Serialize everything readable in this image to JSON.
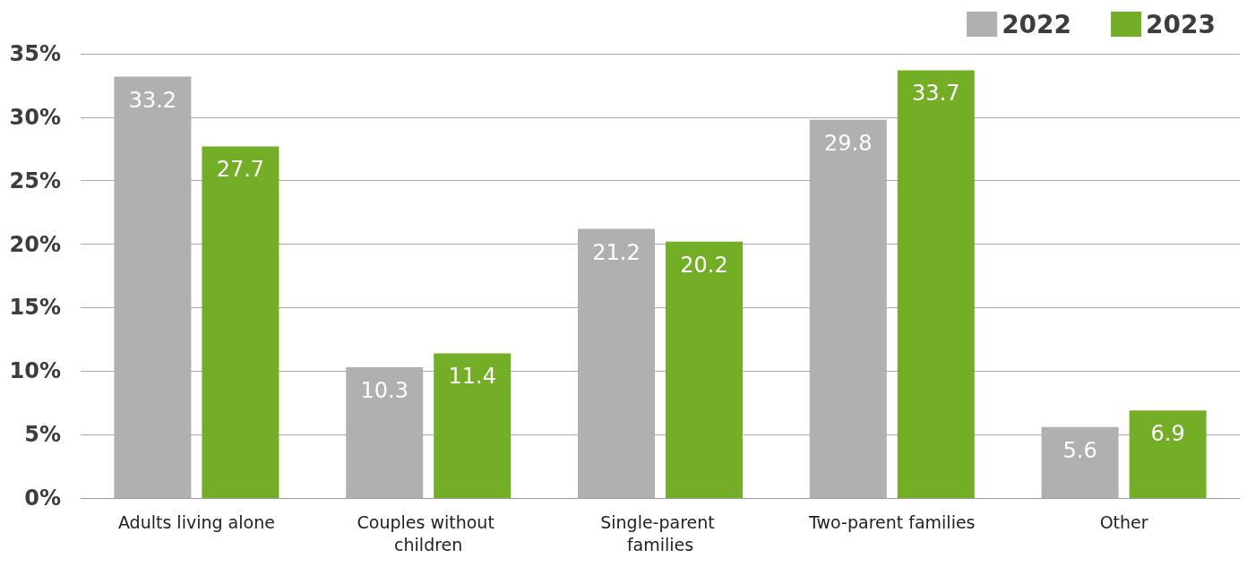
{
  "chart_data": {
    "type": "bar",
    "categories": [
      "Adults living alone",
      "Couples without children",
      "Single-parent families",
      "Two-parent families",
      "Other"
    ],
    "series": [
      {
        "name": "2022",
        "color": "#b1afb0",
        "values": [
          33.2,
          10.3,
          21.2,
          29.8,
          5.6
        ]
      },
      {
        "name": "2023",
        "color": "#74ae27",
        "values": [
          27.7,
          11.4,
          20.2,
          33.7,
          6.9
        ]
      }
    ],
    "ylim": [
      0,
      35
    ],
    "yticks": [
      {
        "value": 0,
        "label": "0%"
      },
      {
        "value": 5,
        "label": "5%"
      },
      {
        "value": 10,
        "label": "10%"
      },
      {
        "value": 15,
        "label": "15%"
      },
      {
        "value": 20,
        "label": "20%"
      },
      {
        "value": 25,
        "label": "25%"
      },
      {
        "value": 30,
        "label": "30%"
      },
      {
        "value": 35,
        "label": "35%"
      }
    ],
    "grid": "y",
    "legend": "top right",
    "data_labels": true
  }
}
